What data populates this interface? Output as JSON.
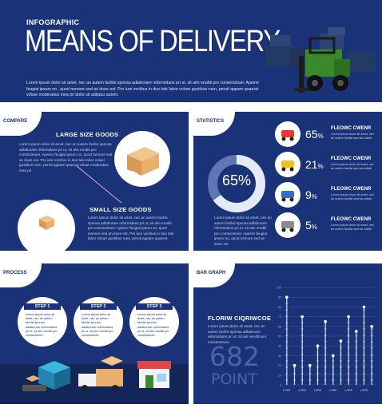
{
  "header": {
    "label": "INFOGRAPHIC",
    "title": "MEANS OF DELIVERY",
    "text": "Lorem ipsum dolor sit amet, nec an autem facilisi sponsa adlaborare reformidans pri ut, sit aim eruditi pro consectetuer. Apeirer feugiat ipsum no , quod nemore sed an iriure est. Pro iure vocibus in duo tale labor voluer gustibus ruen, peruit appare quaerat virtute moderatius mea pri dolor sit adlpisci autem."
  },
  "compare": {
    "title": "COMPARE",
    "large_heading": "LARGE SIZE GOODS",
    "large_text": "Lorem ipsum dolor sit amet, nec an autem facilisi sponsa adlaborare reformidans pri ut, sit aim eruditi pro consectetuer. Apeirer feugiat ipsum no, quod nemore sed an iriure est. Pro iure vocibus in duo tale labor voluer gustibus ruen, peruit appare quaerat virtute moderatius mea pri.",
    "small_heading": "SMALL SIZE GOODS",
    "small_text": "Lorem ipsum dolor sit amet, nec an autem facilisi sponsa adlaborare reformidans pri ut, sit aim eruditi pro consectetuer. Apeirer feugiat ipsum no, quod nemore sed an iriure est. Pro iure vocibus in duo tale labor voluer gustibus ruen, peruit appare quaerat."
  },
  "statistics": {
    "title": "STATISTICS",
    "donut_percent": 65,
    "donut_label": "65%",
    "text": "Lorem ipsum dolor sit amet, nec an autem facilisi sponsa adlaborare reformidans pri ut, sit aim eruditi pro consectetuer. Apeirer feugiat ipsum no, quod nemore sed an iriure est.",
    "items": [
      {
        "value": "65",
        "unit": "%",
        "label": "FLEOWC CWENR",
        "text": "Lorem ipsum dolor sit amet, nec an autem facilisi sponsa adlab",
        "icon": "scooter-icon",
        "color": "#e63a2e"
      },
      {
        "value": "21",
        "unit": "%",
        "label": "FLEOWC CWENR",
        "text": "Lorem ipsum dolor sit amet, nec an autem facilisi sponsa adlab",
        "icon": "small-truck-icon",
        "color": "#f2c21b"
      },
      {
        "value": "9",
        "unit": "%",
        "label": "FLEOWC CWENR",
        "text": "Lorem ipsum dolor sit amet, nec an autem facilisi sponsa adlab",
        "icon": "van-icon",
        "color": "#2f6fc4"
      },
      {
        "value": "5",
        "unit": "%",
        "label": "FLEOWC CWENR",
        "text": "Lorem ipsum dolor sit amet, nec an autem facilisi sponsa adlab",
        "icon": "box-truck-icon",
        "color": "#8a8a8a"
      }
    ]
  },
  "process": {
    "title": "PROCESS",
    "steps": [
      {
        "label": "STEP 1",
        "text": "Lorem ipsum dolor sit amet, nec an autem facilisi sponsa adlaborare reformidans pri ut, sit aim eruditi pro consectetuer."
      },
      {
        "label": "STEP 2",
        "text": "Lorem ipsum dolor sit amet, nec an autem facilisi sponsa adlaborare reformidans pri ut, sit aim eruditi pro consectetuer."
      },
      {
        "label": "STEP 3",
        "text": "Lorem ipsum dolor sit amet, nec an autem facilisi sponsa adlaborare reformidans pri ut, sit aim eruditi pro consectetuer."
      }
    ]
  },
  "bar_graph": {
    "title": "BAR GRAPH",
    "heading": "FLORIW CIQRIWCOE",
    "text": "Lorem ipsum dolor sit amet, nec an autem facilisi sponsa adlaborare reformidans pri ut, sit aim eruditi pro consectetuer.",
    "big_number": "682",
    "big_unit": "POINT"
  },
  "chart_data": {
    "type": "bar",
    "categories": [
      "LORE",
      "LORE",
      "LORE",
      "LORE",
      "LORE",
      "LORE",
      "LORE",
      "LORE",
      "LORE",
      "LORE",
      "LORE",
      "LORE"
    ],
    "values": [
      90,
      20,
      70,
      20,
      40,
      65,
      30,
      45,
      70,
      55,
      80,
      60
    ],
    "ylim": [
      0,
      100
    ],
    "ticks": [
      "100",
      "90",
      "80",
      "70",
      "60",
      "50",
      "40",
      "30",
      "20",
      "10",
      "0"
    ],
    "grid": true
  }
}
